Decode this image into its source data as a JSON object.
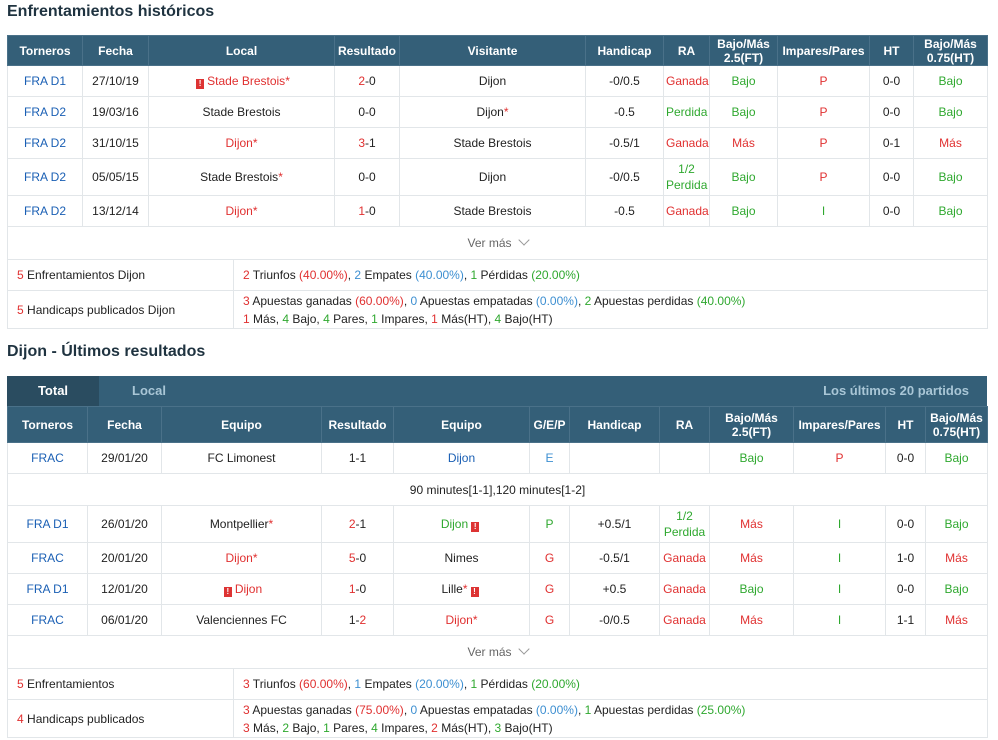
{
  "h2h": {
    "title": "Enfrentamientos históricos",
    "headers": [
      "Torneros",
      "Fecha",
      "Local",
      "Resultado",
      "Visitante",
      "Handicap",
      "RA",
      "Bajo/Más 2.5(FT)",
      "Impares/Pares",
      "HT",
      "Bajo/Más 0.75(HT)"
    ],
    "rows": [
      {
        "torneo": "FRA D1",
        "fecha": "27/10/19",
        "local": "Stade Brestois",
        "res_l": "2",
        "res_r": "0",
        "visitante": "Dijon",
        "handicap": "-0/0.5",
        "ra": "Ganada",
        "ou": "Bajo",
        "ip": "P",
        "ht": "0-0",
        "ou_ht": "Bajo"
      },
      {
        "torneo": "FRA D2",
        "fecha": "19/03/16",
        "local": "Stade Brestois",
        "res_l": "0",
        "res_r": "0",
        "visitante": "Dijon",
        "handicap": "-0.5",
        "ra": "Perdida",
        "ou": "Bajo",
        "ip": "P",
        "ht": "0-0",
        "ou_ht": "Bajo"
      },
      {
        "torneo": "FRA D2",
        "fecha": "31/10/15",
        "local": "Dijon",
        "res_l": "3",
        "res_r": "1",
        "visitante": "Stade Brestois",
        "handicap": "-0.5/1",
        "ra": "Ganada",
        "ou": "Más",
        "ip": "P",
        "ht": "0-1",
        "ou_ht": "Más"
      },
      {
        "torneo": "FRA D2",
        "fecha": "05/05/15",
        "local": "Stade Brestois",
        "res_l": "0",
        "res_r": "0",
        "visitante": "Dijon",
        "handicap": "-0/0.5",
        "ra_top": "1/2",
        "ra": "Perdida",
        "ou": "Bajo",
        "ip": "P",
        "ht": "0-0",
        "ou_ht": "Bajo"
      },
      {
        "torneo": "FRA D2",
        "fecha": "13/12/14",
        "local": "Dijon",
        "res_l": "1",
        "res_r": "0",
        "visitante": "Stade Brestois",
        "handicap": "-0.5",
        "ra": "Ganada",
        "ou": "Bajo",
        "ip": "I",
        "ht": "0-0",
        "ou_ht": "Bajo"
      }
    ],
    "ver_mas": "Ver más",
    "summary": {
      "row1_label_n": "5",
      "row1_label": " Enfrentamientos Dijon",
      "r1": {
        "a": "2",
        "a_t": " Triunfos ",
        "a_p": "(40.00%)",
        "b": "2",
        "b_t": " Empates ",
        "b_p": "(40.00%)",
        "c": "1",
        "c_t": " Pérdidas ",
        "c_p": "(20.00%)"
      },
      "row2_label_n": "5",
      "row2_label": " Handicaps publicados Dijon",
      "r2": {
        "a": "3",
        "a_t": " Apuestas ganadas ",
        "a_p": "(60.00%)",
        "b": "0",
        "b_t": " Apuestas empatadas ",
        "b_p": "(0.00%)",
        "c": "2",
        "c_t": " Apuestas perdidas ",
        "c_p": "(40.00%)"
      },
      "r2b": {
        "m": "1",
        "m_t": " Más, ",
        "b": "4",
        "b_t": " Bajo, ",
        "p": "4",
        "p_t": " Pares, ",
        "i": "1",
        "i_t": " Impares, ",
        "mh": "1",
        "mh_t": " Más(HT), ",
        "bh": "4",
        "bh_t": " Bajo(HT)"
      }
    }
  },
  "recent": {
    "title": "Dijon - Últimos resultados",
    "tabs": {
      "total": "Total",
      "local": "Local",
      "right": "Los últimos 20 partidos"
    },
    "headers": [
      "Torneros",
      "Fecha",
      "Equipo",
      "Resultado",
      "Equipo",
      "G/E/P",
      "Handicap",
      "RA",
      "Bajo/Más 2.5(FT)",
      "Impares/Pares",
      "HT",
      "Bajo/Más 0.75(HT)"
    ],
    "note": "90 minutes[1-1],120 minutes[1-2]",
    "rows": [
      {
        "torneo": "FRAC",
        "fecha": "29/01/20",
        "home": "FC Limonest",
        "res_l": "1",
        "res_r": "1",
        "away": "Dijon",
        "gep": "E",
        "handicap": "",
        "ra": "",
        "ou": "Bajo",
        "ip": "P",
        "ht": "0-0",
        "ou_ht": "Bajo"
      },
      {
        "torneo": "FRA D1",
        "fecha": "26/01/20",
        "home": "Montpellier",
        "res_l": "2",
        "res_r": "1",
        "away": "Dijon",
        "gep": "P",
        "handicap": "+0.5/1",
        "ra_top": "1/2",
        "ra": "Perdida",
        "ou": "Más",
        "ip": "I",
        "ht": "0-0",
        "ou_ht": "Bajo"
      },
      {
        "torneo": "FRAC",
        "fecha": "20/01/20",
        "home": "Dijon",
        "res_l": "5",
        "res_r": "0",
        "away": "Nimes",
        "gep": "G",
        "handicap": "-0.5/1",
        "ra": "Ganada",
        "ou": "Más",
        "ip": "I",
        "ht": "1-0",
        "ou_ht": "Más"
      },
      {
        "torneo": "FRA D1",
        "fecha": "12/01/20",
        "home": "Dijon",
        "res_l": "1",
        "res_r": "0",
        "away": "Lille",
        "gep": "G",
        "handicap": "+0.5",
        "ra": "Ganada",
        "ou": "Bajo",
        "ip": "I",
        "ht": "0-0",
        "ou_ht": "Bajo"
      },
      {
        "torneo": "FRAC",
        "fecha": "06/01/20",
        "home": "Valenciennes FC",
        "res_l": "1",
        "res_r": "2",
        "away": "Dijon",
        "gep": "G",
        "handicap": "-0/0.5",
        "ra": "Ganada",
        "ou": "Más",
        "ip": "I",
        "ht": "1-1",
        "ou_ht": "Más"
      }
    ],
    "ver_mas": "Ver más",
    "summary": {
      "row1_label_n": "5",
      "row1_label": " Enfrentamientos",
      "r1": {
        "a": "3",
        "a_t": " Triunfos ",
        "a_p": "(60.00%)",
        "b": "1",
        "b_t": " Empates ",
        "b_p": "(20.00%)",
        "c": "1",
        "c_t": " Pérdidas ",
        "c_p": "(20.00%)"
      },
      "row2_label_n": "4",
      "row2_label": " Handicaps publicados",
      "r2": {
        "a": "3",
        "a_t": " Apuestas ganadas ",
        "a_p": "(75.00%)",
        "b": "0",
        "b_t": " Apuestas empatadas ",
        "b_p": "(0.00%)",
        "c": "1",
        "c_t": " Apuestas perdidas ",
        "c_p": "(25.00%)"
      },
      "r2b": {
        "m": "3",
        "m_t": " Más, ",
        "b": "2",
        "b_t": " Bajo, ",
        "p": "1",
        "p_t": " Pares, ",
        "i": "4",
        "i_t": " Impares, ",
        "mh": "2",
        "mh_t": " Más(HT), ",
        "bh": "3",
        "bh_t": " Bajo(HT)"
      }
    }
  },
  "colors": {
    "header_bg": "#345f78",
    "win": "#e03030",
    "lose": "#2fa82f",
    "link": "#1a5fb4"
  }
}
